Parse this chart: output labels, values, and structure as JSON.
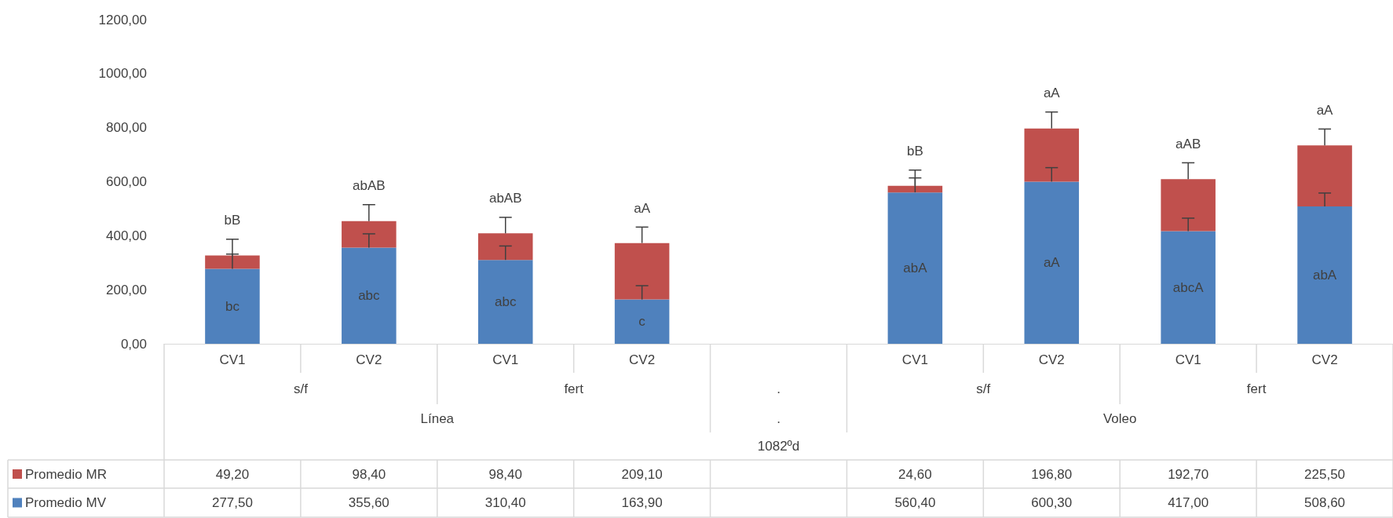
{
  "chart_data": {
    "type": "bar",
    "stacked": true,
    "categories": [
      "CV1",
      "CV2",
      "CV1",
      "CV2",
      null,
      "CV1",
      "CV2",
      "CV1",
      "CV2"
    ],
    "series": [
      {
        "name": "Promedio MV",
        "color": "#4f81bd",
        "values": [
          277.5,
          355.6,
          310.4,
          163.9,
          null,
          560.4,
          600.3,
          417.0,
          508.6
        ],
        "errors": [
          [
            277.5,
            332
          ],
          [
            355.6,
            407
          ],
          [
            310.4,
            362
          ],
          [
            163.9,
            215
          ],
          null,
          [
            560.4,
            614
          ],
          [
            600.3,
            652
          ],
          [
            417.0,
            465
          ],
          [
            508.6,
            558
          ]
        ],
        "value_labels": [
          "277,50",
          "355,60",
          "310,40",
          "163,90",
          null,
          "560,40",
          "600,30",
          "417,00",
          "508,60"
        ]
      },
      {
        "name": "Promedio MR",
        "color": "#c0504d",
        "values": [
          49.2,
          98.4,
          98.4,
          209.1,
          null,
          24.6,
          196.8,
          192.7,
          225.5
        ],
        "errors": [
          [
            326.7,
            387
          ],
          [
            454.0,
            515
          ],
          [
            408.8,
            468
          ],
          [
            373.0,
            432
          ],
          null,
          [
            585.0,
            643
          ],
          [
            797.1,
            858
          ],
          [
            609.7,
            670
          ],
          [
            734.1,
            795
          ]
        ],
        "value_labels": [
          "49,20",
          "98,40",
          "98,40",
          "209,10",
          null,
          "24,60",
          "196,80",
          "192,70",
          "225,50"
        ]
      }
    ],
    "ylim": [
      0,
      1200
    ],
    "yticks": [
      {
        "value": 0,
        "label": "0,00"
      },
      {
        "value": 200,
        "label": "200,00"
      },
      {
        "value": 400,
        "label": "400,00"
      },
      {
        "value": 600,
        "label": "600,00"
      },
      {
        "value": 800,
        "label": "800,00"
      },
      {
        "value": 1000,
        "label": "1000,00"
      },
      {
        "value": 1200,
        "label": "1200,00"
      }
    ],
    "annotations": [
      "s/f",
      "fert",
      ".",
      "s/f",
      "fert",
      "Línea",
      ".",
      "Voleo",
      "1082ºd",
      "bc",
      "abc",
      "abc",
      "c",
      "abA",
      "aA",
      "abcA",
      "abA",
      "bB",
      "abAB",
      "abAB",
      "aA",
      "bB",
      "aA",
      "aAB",
      "aA"
    ],
    "legend": "bottom",
    "grid": false
  }
}
